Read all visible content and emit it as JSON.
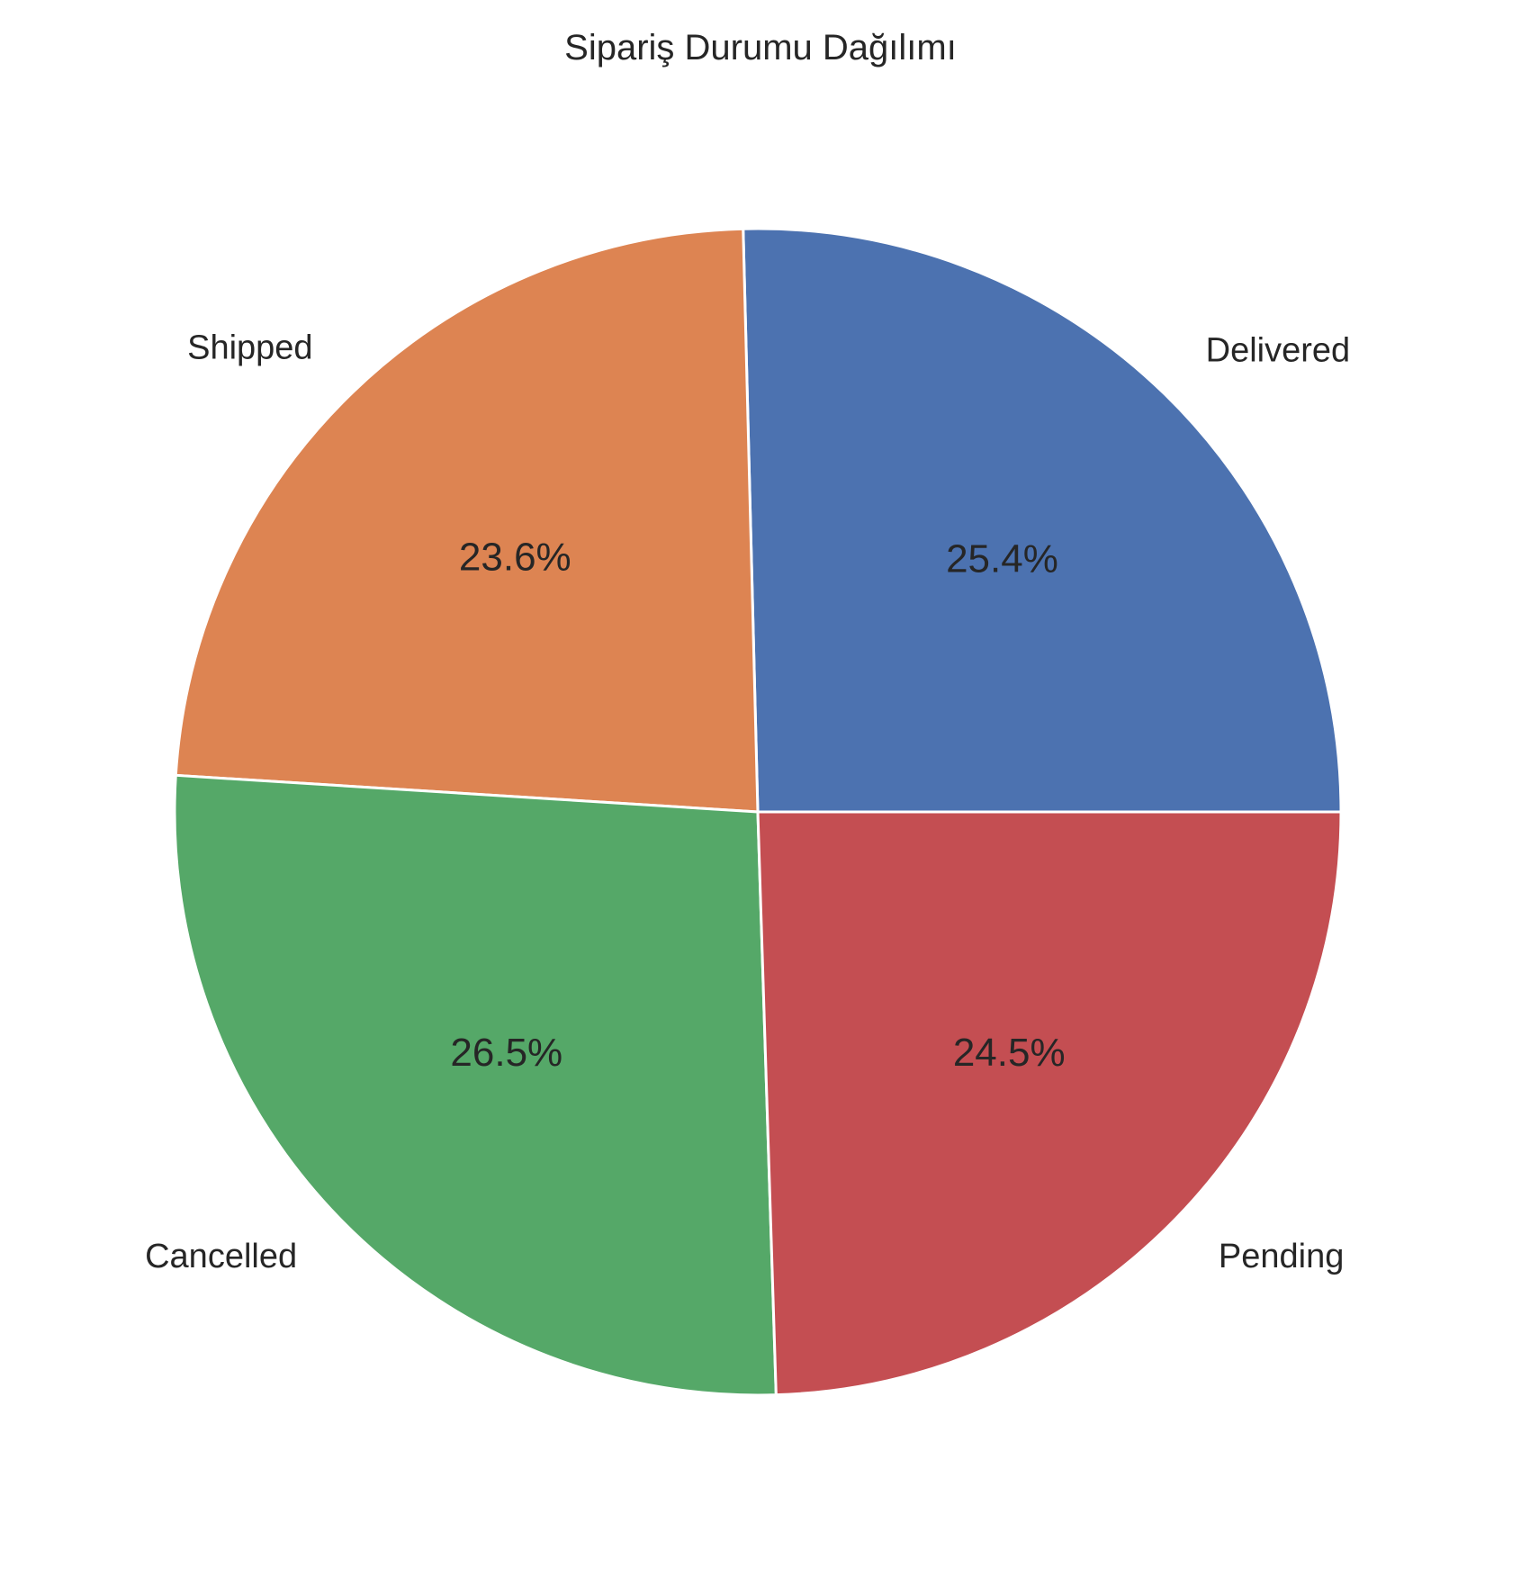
{
  "chart_data": {
    "type": "pie",
    "title": "Sipariş Durumu Dağılımı",
    "labels": [
      "Delivered",
      "Shipped",
      "Cancelled",
      "Pending"
    ],
    "values": [
      25.4,
      23.6,
      26.5,
      24.5
    ],
    "pct_labels": [
      "25.4%",
      "23.6%",
      "26.5%",
      "24.5%"
    ],
    "colors": [
      "#4c72b0",
      "#dd8452",
      "#55a868",
      "#c44e52"
    ],
    "start_angle_deg": 0,
    "direction": "counterclockwise"
  }
}
